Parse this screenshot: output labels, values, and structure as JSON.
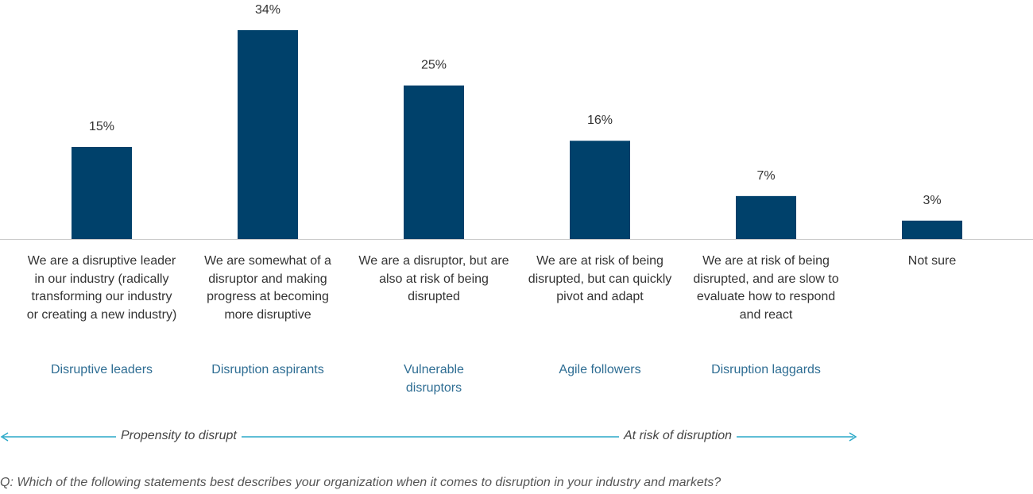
{
  "chart_data": {
    "type": "bar",
    "categories": [
      "We are a disruptive leader in our industry (radically transforming our industry or creating a new industry)",
      "We are somewhat of a disruptor and making progress at becoming more disruptive",
      "We are a disruptor, but are also at risk of being disrupted",
      "We are at risk of being disrupted, but can quickly pivot and adapt",
      "We are at risk of being disrupted, and are slow to evaluate how to respond and react",
      "Not sure"
    ],
    "values": [
      15,
      34,
      25,
      16,
      7,
      3
    ],
    "data_labels": [
      "15%",
      "34%",
      "25%",
      "16%",
      "7%",
      "3%"
    ],
    "segment_labels": [
      "Disruptive leaders",
      "Disruption aspirants",
      "Vulnerable disruptors",
      "Agile followers",
      "Disruption laggards",
      ""
    ],
    "ylim": [
      0,
      34
    ],
    "grid": false,
    "colors": {
      "bar": "#00416b",
      "segment_label": "#2e6d93",
      "arrow": "#2aa8c8",
      "baseline": "#cccccc"
    }
  },
  "annotations": {
    "propensity_label": "Propensity to disrupt",
    "risk_label": "At risk of disruption"
  },
  "question": "Q: Which of the following statements best describes your organization when it comes to disruption in your industry and markets?"
}
